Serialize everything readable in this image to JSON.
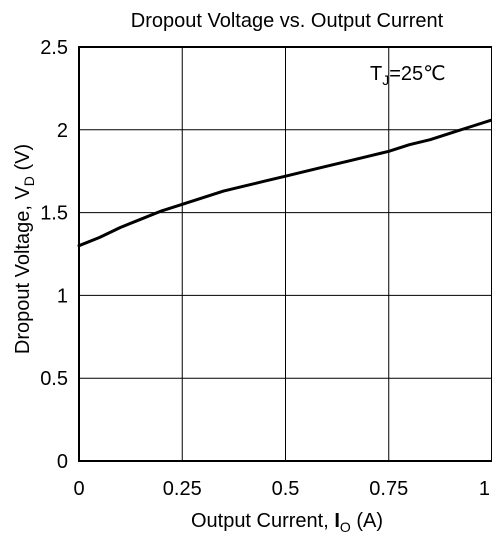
{
  "chart_data": {
    "type": "line",
    "title": "Dropout Voltage vs. Output Current",
    "xlabel": {
      "prefix": "Output Current, ",
      "symbol": "I",
      "subscript": "O",
      "suffix": " (A)"
    },
    "ylabel": {
      "prefix": "Dropout Voltage, V",
      "subscript": "D",
      "suffix": " (V)"
    },
    "xlim": [
      0,
      1
    ],
    "ylim": [
      0,
      2.5
    ],
    "xticks": [
      0,
      0.25,
      0.5,
      0.75,
      1
    ],
    "xtick_labels": [
      "0",
      "0.25",
      "0.5",
      "0.75",
      "1"
    ],
    "yticks": [
      0,
      0.5,
      1,
      1.5,
      2,
      2.5
    ],
    "ytick_labels": [
      "0",
      "0.5",
      "1",
      "1.5",
      "2",
      "2.5"
    ],
    "grid": true,
    "legend": "none",
    "annotation": {
      "prefix": "T",
      "subscript": "J",
      "suffix": "=25℃"
    },
    "series": [
      {
        "x": [
          0,
          0.05,
          0.1,
          0.15,
          0.2,
          0.25,
          0.3,
          0.35,
          0.4,
          0.45,
          0.5,
          0.55,
          0.6,
          0.65,
          0.7,
          0.75,
          0.8,
          0.85,
          0.9,
          0.95,
          1.0
        ],
        "y": [
          1.3,
          1.35,
          1.41,
          1.46,
          1.51,
          1.55,
          1.59,
          1.63,
          1.66,
          1.69,
          1.72,
          1.75,
          1.78,
          1.81,
          1.84,
          1.87,
          1.91,
          1.94,
          1.98,
          2.02,
          2.06
        ]
      }
    ]
  }
}
